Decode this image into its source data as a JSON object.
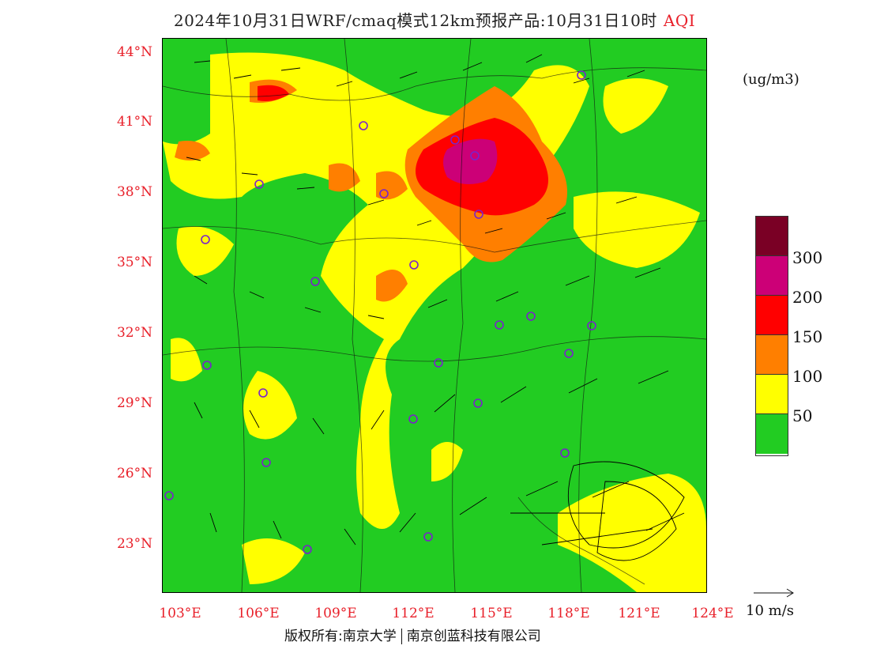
{
  "title": {
    "main": "2024年10月31日WRF/cmaq模式12km预报产品:10月31日10时",
    "variable": "AQI"
  },
  "unit": "(ug/m3)",
  "lat_labels": [
    "44°N",
    "41°N",
    "38°N",
    "35°N",
    "32°N",
    "29°N",
    "26°N",
    "23°N"
  ],
  "lon_labels": [
    "103°E",
    "106°E",
    "109°E",
    "112°E",
    "115°E",
    "118°E",
    "121°E",
    "124°E"
  ],
  "legend": {
    "colors": [
      "#7a0025",
      "#cc0077",
      "#ff0000",
      "#ff7f00",
      "#ffff00",
      "#22cc22"
    ],
    "labels": [
      "300",
      "200",
      "150",
      "100",
      "50"
    ]
  },
  "wind_key": {
    "label": "10 m/s"
  },
  "copyright": {
    "left": "版权所有:南京大学",
    "right": "南京创蓝科技有限公司"
  }
}
